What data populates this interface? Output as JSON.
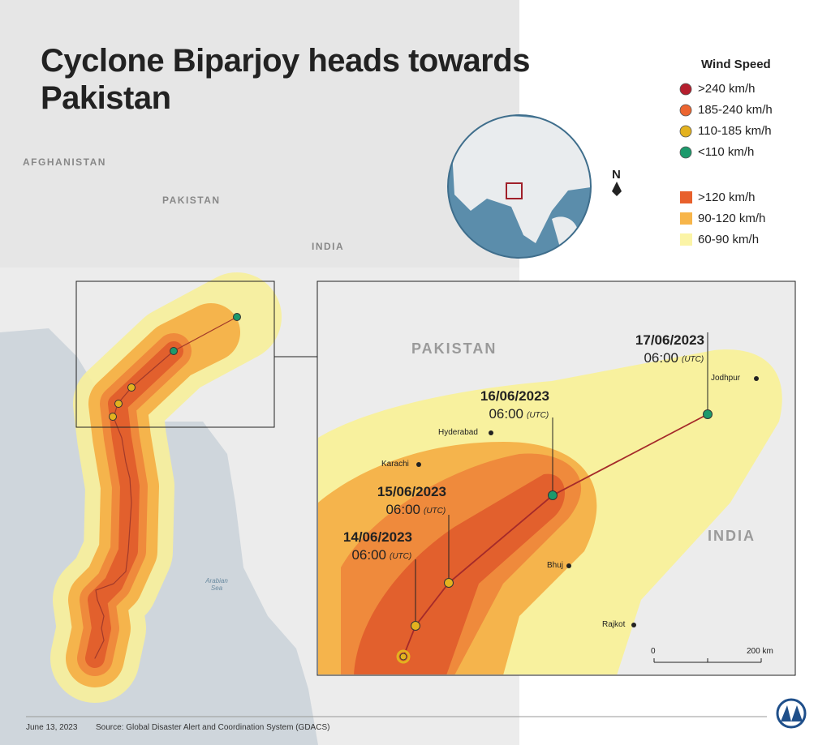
{
  "title": "Cyclone Biparjoy heads towards Pakistan",
  "legend": {
    "heading": "Wind Speed",
    "track": [
      ">240 km/h",
      "185-240 km/h",
      "110-185 km/h",
      "<110 km/h"
    ],
    "zones": [
      ">120 km/h",
      "90-120 km/h",
      "60-90 km/h"
    ]
  },
  "north": "N",
  "overview_labels": [
    "AFGHANISTAN",
    "PAKISTAN",
    "INDIA",
    "Arabian Sea"
  ],
  "inset": {
    "countries": [
      "PAKISTAN",
      "INDIA"
    ],
    "cities": [
      "Jodhpur",
      "Hyderabad",
      "Karachi",
      "Bhuj",
      "Rajkot"
    ],
    "track_labels": [
      {
        "date": "14/06/2023",
        "time": "06:00",
        "zone": "(UTC)"
      },
      {
        "date": "15/06/2023",
        "time": "06:00",
        "zone": "(UTC)"
      },
      {
        "date": "16/06/2023",
        "time": "06:00",
        "zone": "(UTC)"
      },
      {
        "date": "17/06/2023",
        "time": "06:00",
        "zone": "(UTC)"
      }
    ],
    "scale": [
      "0",
      "200 km"
    ]
  },
  "footer": {
    "date": "June 13, 2023",
    "source": "Source: Global Disaster Alert and Coordination System (GDACS)"
  }
}
